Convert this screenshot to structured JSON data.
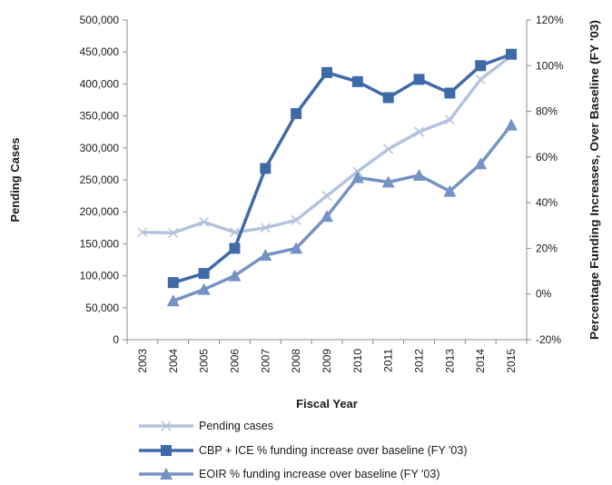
{
  "chart_data": {
    "type": "line",
    "x": [
      "2003",
      "2004",
      "2005",
      "2006",
      "2007",
      "2008",
      "2009",
      "2010",
      "2011",
      "2012",
      "2013",
      "2014",
      "2015"
    ],
    "xlabel": "Fiscal Year",
    "ylabel_left": "Pending Cases",
    "ylabel_right": "Percentage Funding Increases, Over Baseline (FY '03)",
    "ylim_left": [
      0,
      500000
    ],
    "yticks_left": [
      "0",
      "50,000",
      "100,000",
      "150,000",
      "200,000",
      "250,000",
      "300,000",
      "350,000",
      "400,000",
      "450,000",
      "500,000"
    ],
    "ylim_right": [
      -20,
      120
    ],
    "yticks_right": [
      "-20%",
      "0%",
      "20%",
      "40%",
      "60%",
      "80%",
      "100%",
      "120%"
    ],
    "grid": false,
    "legend_position": "bottom",
    "series": [
      {
        "name": "Pending cases",
        "axis": "left",
        "marker": "x",
        "color": "#b4c3dd",
        "values": [
          168000,
          167000,
          184000,
          168000,
          175000,
          187000,
          225000,
          263000,
          298000,
          325000,
          344000,
          407000,
          444000
        ]
      },
      {
        "name": "CBP + ICE % funding increase over baseline (FY '03)",
        "axis": "right",
        "marker": "square",
        "color": "#3e6aa8",
        "values": [
          null,
          5,
          9,
          20,
          55,
          79,
          97,
          93,
          86,
          94,
          88,
          100,
          105
        ]
      },
      {
        "name": "EOIR % funding increase over baseline (FY '03)",
        "axis": "right",
        "marker": "triangle",
        "color": "#7592c4",
        "values": [
          null,
          -3,
          2,
          8,
          17,
          20,
          34,
          51,
          49,
          52,
          45,
          57,
          74
        ]
      }
    ]
  }
}
